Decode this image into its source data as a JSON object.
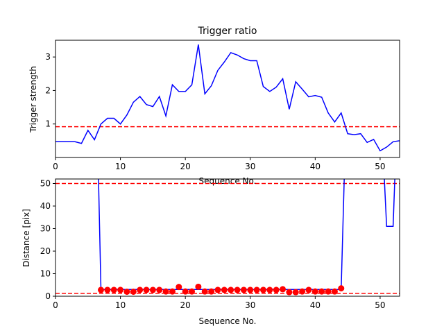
{
  "chart_data": [
    {
      "type": "line",
      "title": "Trigger ratio",
      "xlabel": "Sequence No.",
      "ylabel": "Trigger strength",
      "xlim": [
        0,
        53
      ],
      "ylim": [
        0.0,
        3.5
      ],
      "xticks": [
        0,
        10,
        20,
        30,
        40,
        50
      ],
      "yticks": [
        1,
        2,
        3
      ],
      "grid": false,
      "series": [
        {
          "color": "#0000ff",
          "style": "solid",
          "x": [
            0,
            1,
            2,
            3,
            4,
            5,
            6,
            7,
            8,
            9,
            10,
            11,
            12,
            13,
            14,
            15,
            16,
            17,
            18,
            19,
            20,
            21,
            22,
            23,
            24,
            25,
            26,
            27,
            28,
            29,
            30,
            31,
            32,
            33,
            34,
            35,
            36,
            37,
            38,
            39,
            40,
            41,
            42,
            43,
            44,
            45,
            46,
            47,
            48,
            49,
            50,
            51,
            52,
            53
          ],
          "y": [
            0.47,
            0.47,
            0.47,
            0.47,
            0.42,
            0.81,
            0.53,
            1.0,
            1.17,
            1.17,
            1.0,
            1.27,
            1.65,
            1.82,
            1.58,
            1.52,
            1.82,
            1.24,
            2.17,
            1.97,
            1.97,
            2.17,
            3.37,
            1.9,
            2.14,
            2.6,
            2.85,
            3.13,
            3.06,
            2.95,
            2.89,
            2.89,
            2.12,
            1.97,
            2.1,
            2.35,
            1.44,
            2.26,
            2.04,
            1.81,
            1.85,
            1.8,
            1.33,
            1.06,
            1.33,
            0.71,
            0.68,
            0.71,
            0.45,
            0.54,
            0.2,
            0.31,
            0.47,
            0.5
          ]
        }
      ],
      "hlines": [
        {
          "y": 0.92,
          "color": "#ff0000",
          "style": "dashed"
        }
      ]
    },
    {
      "type": "line",
      "title": "",
      "xlabel": "Sequence No.",
      "ylabel": "Distance [pix]",
      "xlim": [
        0,
        53
      ],
      "ylim": [
        0,
        52
      ],
      "xticks": [
        0,
        10,
        20,
        30,
        40,
        50
      ],
      "yticks": [
        0,
        10,
        20,
        30,
        40,
        50
      ],
      "grid": false,
      "series": [
        {
          "color": "#0000ff",
          "style": "solid",
          "x": [
            6.6,
            7,
            44,
            44.5,
            50.6,
            51,
            52,
            52.3
          ],
          "y": [
            55,
            3,
            3,
            55,
            55,
            31,
            31,
            55
          ]
        },
        {
          "color": "#ff0000",
          "style": "markers",
          "x": [
            7,
            8,
            9,
            10,
            11,
            12,
            13,
            14,
            15,
            16,
            17,
            18,
            19,
            20,
            21,
            22,
            23,
            24,
            25,
            26,
            27,
            28,
            29,
            30,
            31,
            32,
            33,
            34,
            35,
            36,
            37,
            38,
            39,
            40,
            41,
            42,
            43,
            44
          ],
          "y": [
            2.8,
            2.8,
            2.8,
            2.8,
            2.0,
            2.0,
            2.8,
            2.8,
            2.8,
            2.8,
            2.1,
            2.1,
            4.1,
            2.1,
            2.1,
            4.2,
            2.1,
            2.1,
            2.8,
            2.8,
            2.8,
            2.8,
            2.8,
            2.8,
            2.8,
            2.8,
            2.8,
            2.8,
            3.1,
            1.8,
            1.8,
            2.1,
            2.8,
            2.1,
            2.1,
            2.1,
            2.1,
            3.5
          ]
        }
      ],
      "hlines": [
        {
          "y": 50,
          "color": "#ff0000",
          "style": "dashed"
        },
        {
          "y": 1.3,
          "color": "#ff0000",
          "style": "dashed"
        }
      ]
    }
  ]
}
